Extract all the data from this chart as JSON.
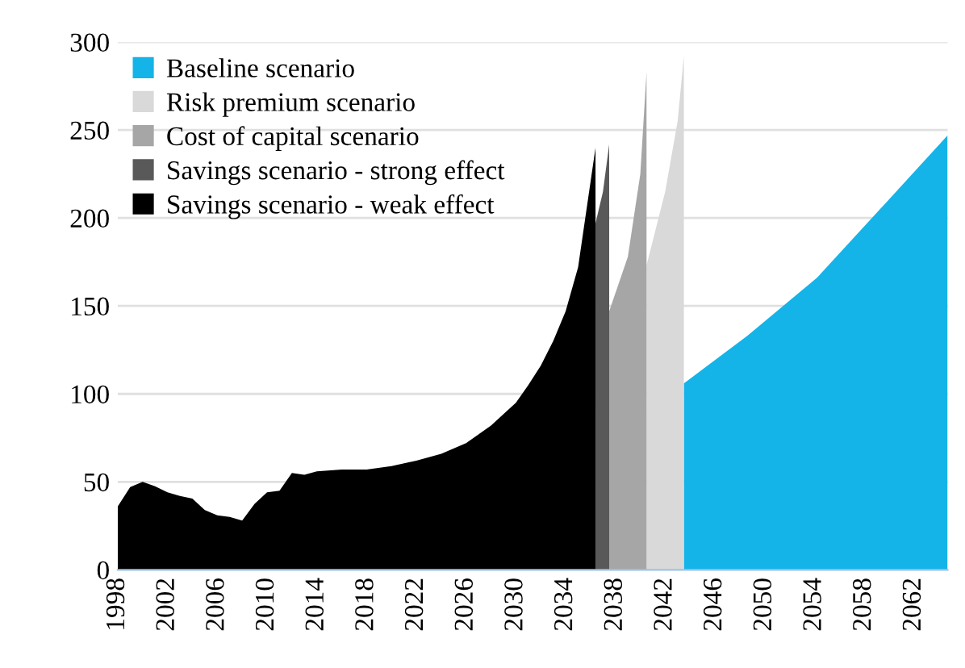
{
  "chart_data": {
    "type": "area",
    "xlim": [
      1998,
      2064.7
    ],
    "xticks": [
      1998,
      2002,
      2006,
      2010,
      2014,
      2018,
      2022,
      2026,
      2030,
      2034,
      2038,
      2042,
      2046,
      2050,
      2054,
      2058,
      2062
    ],
    "ylim": [
      0,
      300
    ],
    "yticks": [
      0,
      50,
      100,
      150,
      200,
      250,
      300
    ],
    "grid": "y",
    "legend": "top left",
    "series": [
      {
        "name": "Baseline scenario",
        "color": "#14b4e8",
        "x": [
          2043.5,
          2048.6,
          2054.2,
          2059.4,
          2064.7
        ],
        "values": [
          106,
          133,
          166,
          206,
          247
        ]
      },
      {
        "name": "Risk premium scenario",
        "color": "#d9d9d9",
        "x": [
          2040.5,
          2042,
          2043,
          2043.5
        ],
        "values": [
          173,
          215,
          255,
          292
        ]
      },
      {
        "name": "Cost of capital scenario",
        "color": "#a6a6a6",
        "x": [
          2037.5,
          2039,
          2040,
          2040.5
        ],
        "values": [
          147,
          178,
          225,
          283
        ]
      },
      {
        "name": "Savings scenario - strong effect",
        "color": "#595959",
        "x": [
          2036.4,
          2037,
          2037.5
        ],
        "values": [
          197,
          215,
          242
        ]
      },
      {
        "name": "Savings scenario - weak effect",
        "color": "#000000",
        "x": [
          1998,
          1999,
          2000,
          2001,
          2002,
          2003,
          2004,
          2005,
          2006,
          2007,
          2008,
          2009,
          2010,
          2011,
          2012,
          2013,
          2014,
          2016,
          2018,
          2020,
          2022,
          2024,
          2026,
          2028,
          2030,
          2031,
          2032,
          2033,
          2034,
          2035,
          2036.4
        ],
        "values": [
          36,
          47,
          50,
          47.5,
          44,
          42,
          40.5,
          34,
          31,
          30,
          28,
          37.5,
          44,
          45,
          55,
          54,
          56,
          57,
          57,
          59,
          62,
          66,
          72,
          82,
          95,
          105,
          116,
          130,
          147,
          172,
          240
        ]
      }
    ]
  }
}
